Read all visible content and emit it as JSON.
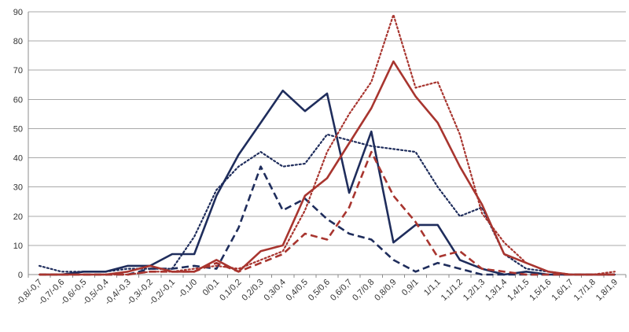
{
  "chart_data": {
    "type": "line",
    "title": "",
    "xlabel": "",
    "ylabel": "",
    "ylim": [
      0,
      90
    ],
    "yticks": [
      0,
      10,
      20,
      30,
      40,
      50,
      60,
      70,
      80,
      90
    ],
    "grid": "horizontal",
    "legend": "none",
    "categories": [
      "-0,8/-0,7",
      "-0,7/-0,6",
      "-0,6/-0,5",
      "-0,5/-0,4",
      "-0,4/-0,3",
      "-0,3/-0,2",
      "-0,2/-0,1",
      "-0,1/0",
      "0/0,1",
      "0,1/0,2",
      "0,2/0,3",
      "0,3/0,4",
      "0,4/0,5",
      "0,5/0,6",
      "0,6/0,7",
      "0,7/0,8",
      "0,8/0,9",
      "0,9/1",
      "1/1,1",
      "1,1/1,2",
      "1,2/1,3",
      "1,3/1,4",
      "1,4/1,5",
      "1,5/1,6",
      "1,6/1,7",
      "1,7/1,8",
      "1,8/1,9"
    ],
    "series": [
      {
        "color": "#1f2d5c",
        "dash": "solid",
        "values": [
          0,
          0,
          1,
          1,
          3,
          3,
          7,
          7,
          27,
          41,
          52,
          63,
          56,
          62,
          28,
          49,
          11,
          17,
          17,
          5,
          2,
          0,
          1,
          0,
          0,
          0,
          0
        ]
      },
      {
        "color": "#1f2d5c",
        "dash": "dashed",
        "values": [
          0,
          0,
          0,
          0,
          0,
          2,
          2,
          3,
          2,
          16,
          37,
          22,
          26,
          19,
          14,
          12,
          5,
          1,
          4,
          2,
          0,
          0,
          0,
          0,
          0,
          0,
          0
        ]
      },
      {
        "color": "#1f2d5c",
        "dash": "dotted",
        "values": [
          3,
          1,
          1,
          1,
          2,
          2,
          2,
          13,
          29,
          37,
          42,
          37,
          38,
          48,
          46,
          44,
          43,
          42,
          30,
          20,
          23,
          7,
          2,
          1,
          0,
          0,
          0
        ]
      },
      {
        "color": "#a8352f",
        "dash": "solid",
        "values": [
          0,
          0,
          0,
          0,
          1,
          3,
          1,
          1,
          5,
          1,
          8,
          10,
          27,
          33,
          45,
          57,
          73,
          61,
          52,
          37,
          24,
          7,
          4,
          1,
          0,
          0,
          0
        ]
      },
      {
        "color": "#a8352f",
        "dash": "dashed",
        "values": [
          0,
          0,
          0,
          0,
          0,
          1,
          1,
          1,
          4,
          1,
          4,
          7,
          14,
          12,
          23,
          42,
          27,
          18,
          6,
          8,
          2,
          1,
          0,
          0,
          0,
          0,
          0
        ]
      },
      {
        "color": "#a8352f",
        "dash": "dotted",
        "values": [
          0,
          0,
          0,
          0,
          0,
          1,
          1,
          2,
          3,
          2,
          5,
          8,
          22,
          42,
          55,
          66,
          89,
          64,
          66,
          48,
          21,
          11,
          4,
          1,
          0,
          0,
          1
        ]
      }
    ]
  }
}
